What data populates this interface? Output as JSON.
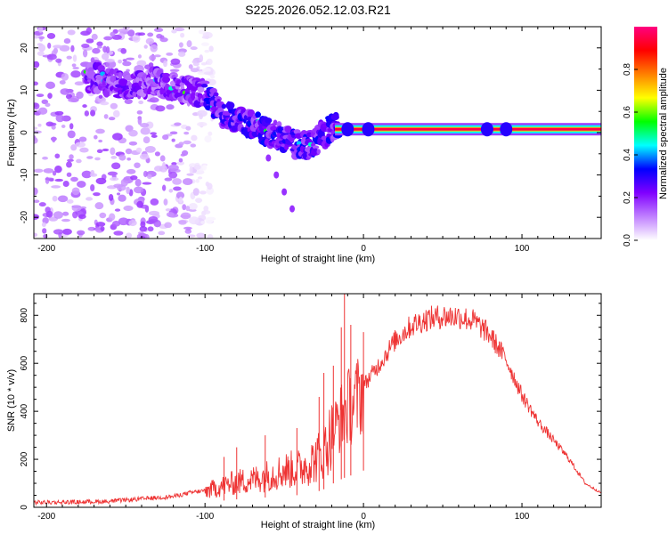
{
  "figure": {
    "title": "S225.2026.052.12.03.R21"
  },
  "chart_data": [
    {
      "type": "heatmap",
      "name": "spectrogram",
      "title": "S225.2026.052.12.03.R21",
      "xlabel": "Height of straight line (km)",
      "ylabel": "Frequency (Hz)",
      "xlim": [
        -208,
        150
      ],
      "ylim": [
        -25,
        25
      ],
      "xticks": [
        -200,
        -100,
        0,
        100
      ],
      "yticks": [
        -20,
        -10,
        0,
        10,
        20
      ],
      "colorbar": {
        "label": "Normalized spectral amplitude",
        "range": [
          0,
          1
        ],
        "ticks": [
          0.0,
          0.2,
          0.4,
          0.6,
          0.8
        ],
        "colors": [
          "#ffffff",
          "#c080ff",
          "#8000ff",
          "#0000ff",
          "#00ffff",
          "#00ff00",
          "#ffff00",
          "#ff8000",
          "#ff0000",
          "#ff0080"
        ]
      },
      "ridge": {
        "x": [
          -170,
          -150,
          -130,
          -120,
          -110,
          -100,
          -95,
          -90,
          -80,
          -70,
          -60,
          -50,
          -40,
          -35,
          -30,
          -20,
          -10,
          0,
          20,
          50,
          80,
          100,
          150
        ],
        "freq": [
          13,
          11,
          12,
          10.5,
          10,
          9,
          7,
          5,
          3,
          2,
          0,
          -1,
          -3,
          -3,
          -2,
          1,
          2,
          1,
          0.8,
          0.8,
          0.8,
          0.8,
          0.8
        ]
      },
      "tone": {
        "x_start": -18,
        "x_end": 150,
        "freq": 0.8,
        "amplitude": 0.95
      },
      "streak": {
        "x": [
          -60,
          -55,
          -50,
          -45
        ],
        "freq": [
          -6,
          -10,
          -14,
          -18
        ]
      },
      "noise_region": {
        "x_start": -208,
        "x_end": -95,
        "freq_range": [
          -25,
          25
        ]
      }
    },
    {
      "type": "line",
      "name": "snr",
      "xlabel": "Height of straight line (km)",
      "ylabel": "SNR (10 * v/v)",
      "xlim": [
        -208,
        150
      ],
      "ylim": [
        0,
        890
      ],
      "xticks": [
        -200,
        -100,
        0,
        100
      ],
      "yticks": [
        0,
        200,
        400,
        600,
        800
      ],
      "series": [
        {
          "name": "SNR",
          "color": "#ee3333",
          "envelope": {
            "x": [
              -208,
              -180,
              -160,
              -140,
              -120,
              -110,
              -100,
              -90,
              -80,
              -70,
              -60,
              -50,
              -40,
              -30,
              -25,
              -20,
              -15,
              -10,
              -5,
              0,
              10,
              20,
              30,
              40,
              50,
              60,
              70,
              80,
              90,
              100,
              110,
              120,
              130,
              140,
              150
            ],
            "y": [
              20,
              22,
              25,
              35,
              45,
              60,
              70,
              90,
              110,
              120,
              140,
              160,
              170,
              210,
              250,
              320,
              380,
              430,
              460,
              510,
              600,
              700,
              760,
              790,
              800,
              800,
              780,
              720,
              620,
              470,
              360,
              280,
              200,
              100,
              60
            ]
          },
          "spikes": [
            {
              "x": -88,
              "y": 210
            },
            {
              "x": -80,
              "y": 250
            },
            {
              "x": -62,
              "y": 300
            },
            {
              "x": -42,
              "y": 330
            },
            {
              "x": -28,
              "y": 460
            },
            {
              "x": -25,
              "y": 560
            },
            {
              "x": -19,
              "y": 590
            },
            {
              "x": -14,
              "y": 750
            },
            {
              "x": -12,
              "y": 890
            },
            {
              "x": -8,
              "y": 760
            },
            {
              "x": 0,
              "y": 730
            }
          ]
        }
      ]
    }
  ]
}
